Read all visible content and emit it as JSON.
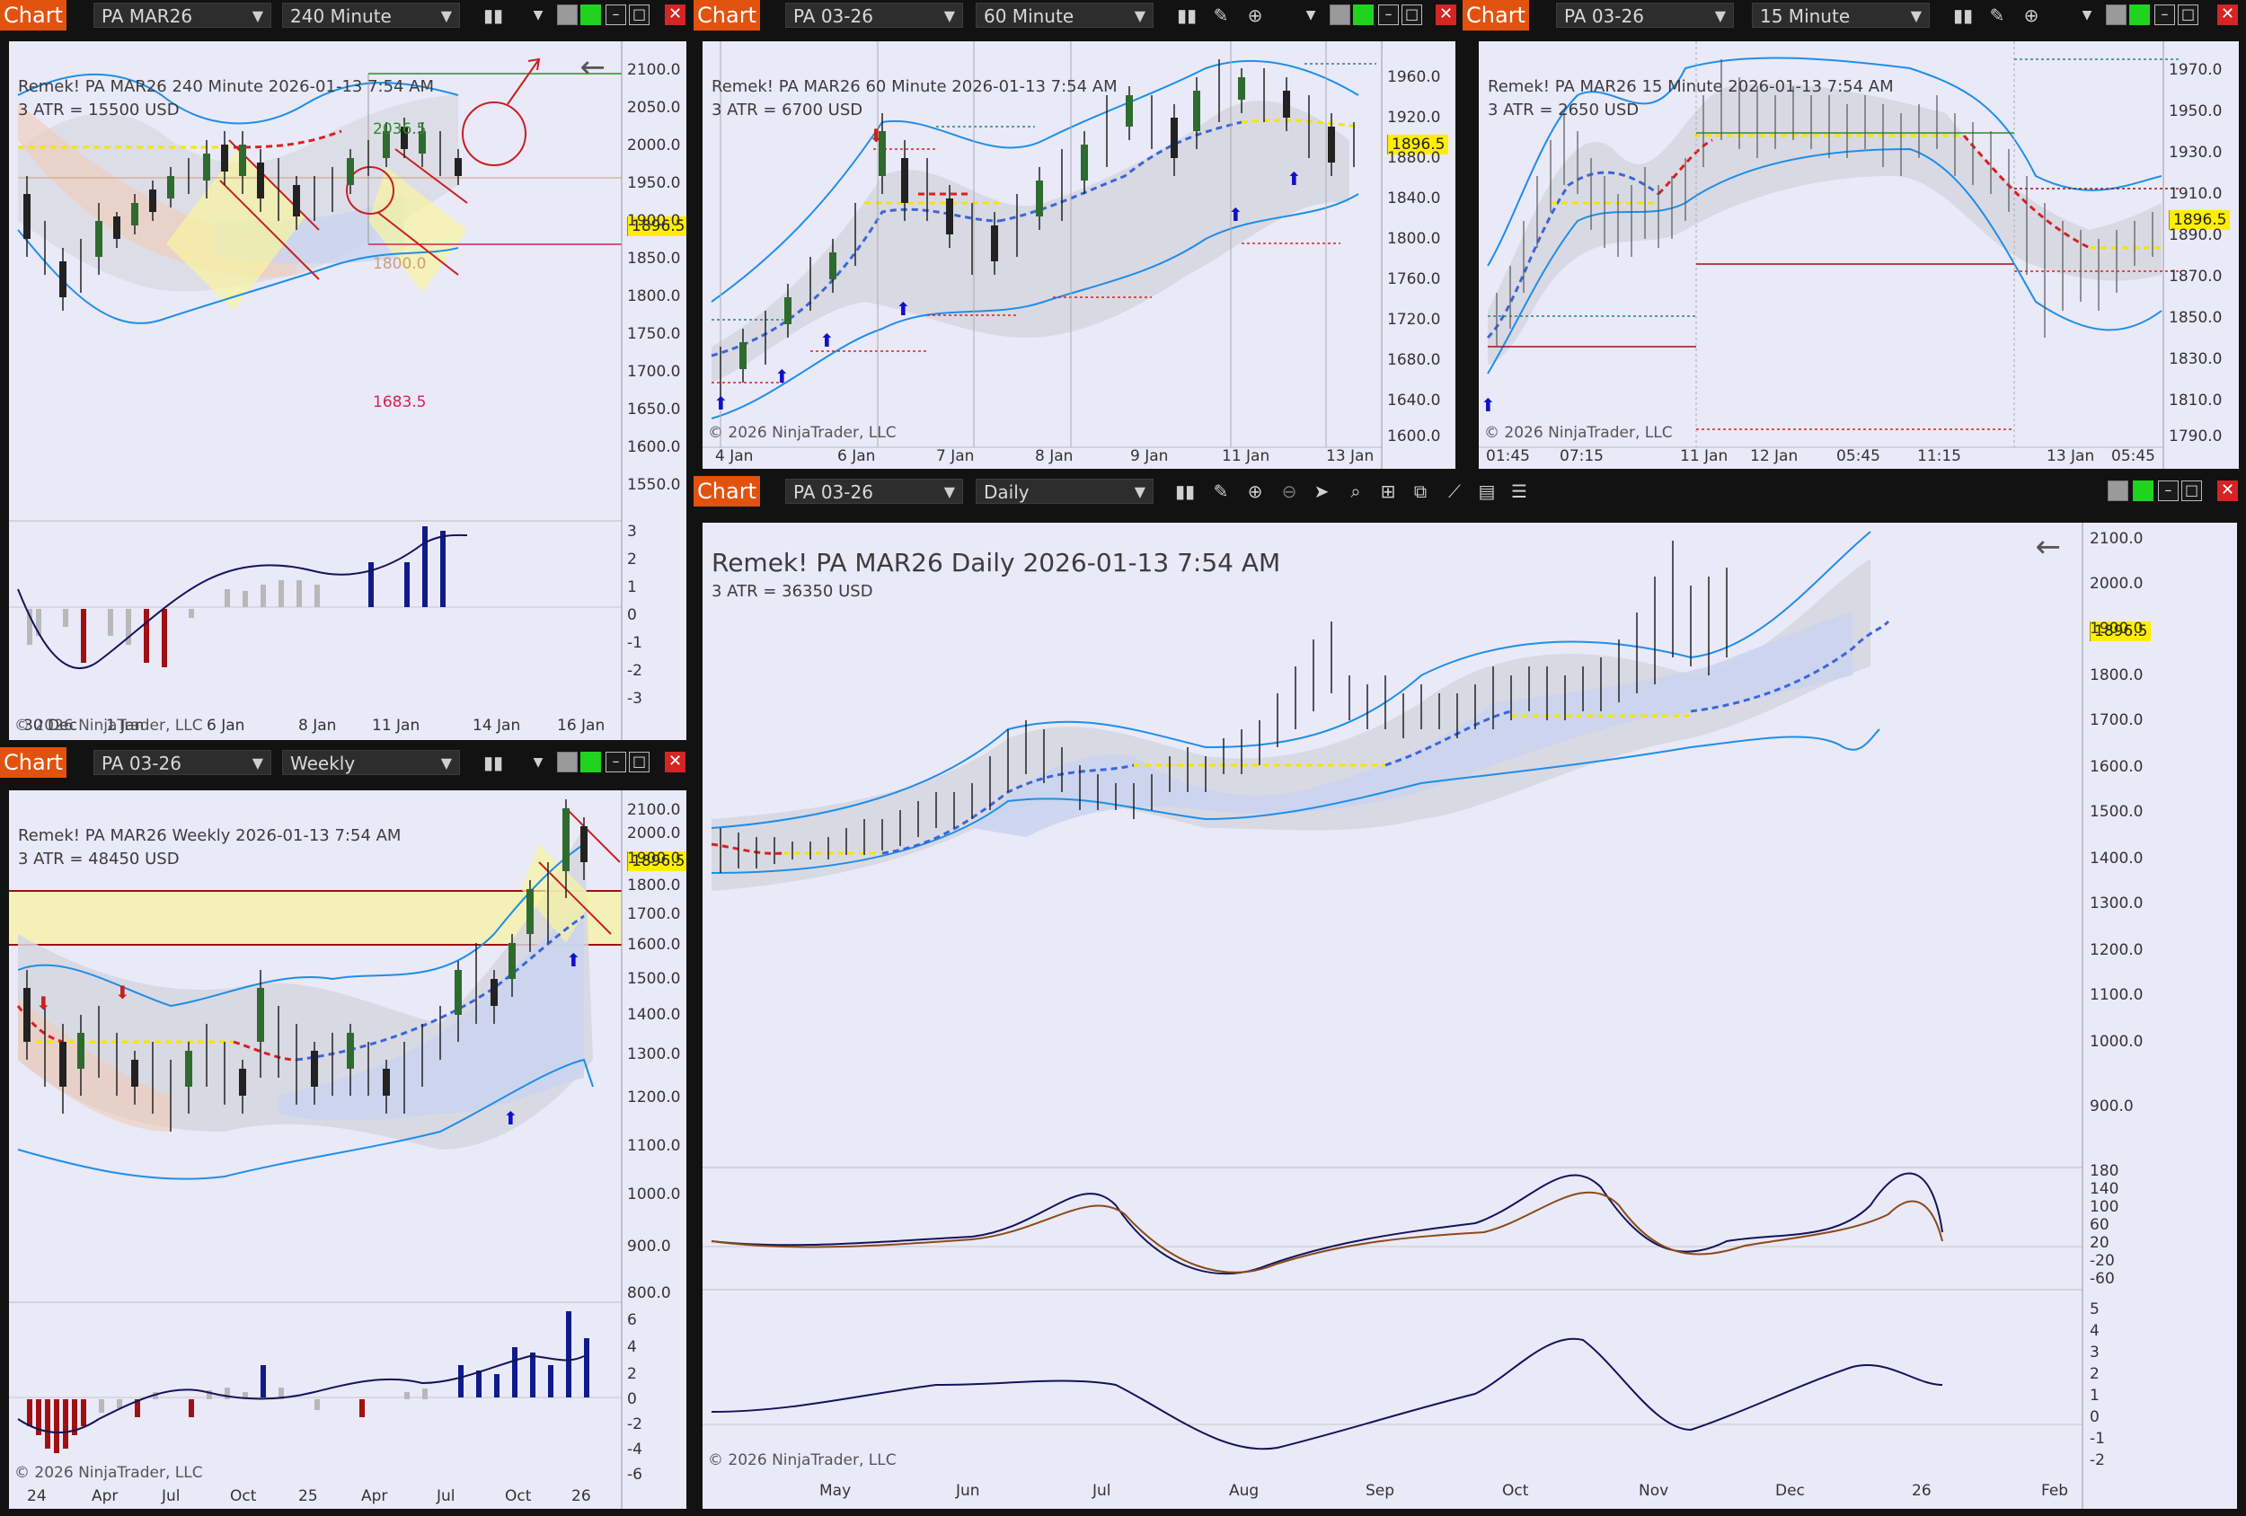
{
  "windows": {
    "w240": {
      "title": "Chart",
      "instrument": "PA MAR26",
      "interval": "240 Minute",
      "info_line": "Remek!  PA MAR26  240 Minute  2026-01-13 7:54 AM",
      "atr_line": "3 ATR = 15500 USD",
      "copyright": "© 2026 NinjaTrader, LLC",
      "last_price": "1896.5",
      "label_high": "2036.5",
      "label_mid": "1800.0",
      "label_low": "1683.5",
      "y_ticks": [
        "2100.0",
        "2050.0",
        "2000.0",
        "1950.0",
        "1900.0",
        "1850.0",
        "1800.0",
        "1750.0",
        "1700.0",
        "1650.0",
        "1600.0",
        "1550.0"
      ],
      "osc_ticks": [
        "3",
        "2",
        "1",
        "0",
        "-1",
        "-2",
        "-3"
      ],
      "x_ticks": [
        "30 Dec",
        "1 Jan",
        "6 Jan",
        "8 Jan",
        "11 Jan",
        "14 Jan",
        "16 Jan"
      ]
    },
    "w60": {
      "title": "Chart",
      "instrument": "PA 03-26",
      "interval": "60 Minute",
      "info_line": "Remek!  PA MAR26  60 Minute  2026-01-13 7:54 AM",
      "atr_line": "3 ATR = 6700 USD",
      "copyright": "© 2026 NinjaTrader, LLC",
      "last_price": "1896.5",
      "y_ticks": [
        "1960.0",
        "1920.0",
        "1880.0",
        "1840.0",
        "1800.0",
        "1760.0",
        "1720.0",
        "1680.0",
        "1640.0",
        "1600.0"
      ],
      "x_ticks": [
        "4 Jan",
        "6 Jan",
        "7 Jan",
        "8 Jan",
        "9 Jan",
        "11 Jan",
        "13 Jan"
      ]
    },
    "w15": {
      "title": "Chart",
      "instrument": "PA 03-26",
      "interval": "15 Minute",
      "info_line": "Remek!  PA MAR26  15 Minute  2026-01-13 7:54 AM",
      "atr_line": "3 ATR = 2650 USD",
      "copyright": "© 2026 NinjaTrader, LLC",
      "last_price": "1896.5",
      "y_ticks": [
        "1970.0",
        "1950.0",
        "1930.0",
        "1910.0",
        "1890.0",
        "1870.0",
        "1850.0",
        "1830.0",
        "1810.0",
        "1790.0"
      ],
      "x_ticks": [
        "01:45",
        "07:15",
        "11 Jan",
        "12 Jan",
        "05:45",
        "11:15",
        "13 Jan",
        "05:45"
      ]
    },
    "wweekly": {
      "title": "Chart",
      "instrument": "PA 03-26",
      "interval": "Weekly",
      "info_line": "Remek!  PA MAR26  Weekly  2026-01-13 7:54 AM",
      "atr_line": "3 ATR = 48450 USD",
      "copyright": "© 2026 NinjaTrader, LLC",
      "last_price": "1896.5",
      "y_ticks": [
        "2100.0",
        "2000.0",
        "1900.0",
        "1800.0",
        "1700.0",
        "1600.0",
        "1500.0",
        "1400.0",
        "1300.0",
        "1200.0",
        "1100.0",
        "1000.0",
        "900.0",
        "800.0"
      ],
      "osc_ticks": [
        "6",
        "4",
        "2",
        "0",
        "-2",
        "-4",
        "-6"
      ],
      "x_ticks": [
        "24",
        "Apr",
        "Jul",
        "Oct",
        "25",
        "Apr",
        "Jul",
        "Oct",
        "26"
      ]
    },
    "wdaily": {
      "title": "Chart",
      "instrument": "PA 03-26",
      "interval": "Daily",
      "info_line": "Remek!  PA MAR26  Daily  2026-01-13 7:54 AM",
      "atr_line": "3 ATR = 36350 USD",
      "copyright": "© 2026 NinjaTrader, LLC",
      "last_price": "1896.5",
      "y_ticks": [
        "2100.0",
        "2000.0",
        "1900.0",
        "1800.0",
        "1700.0",
        "1600.0",
        "1500.0",
        "1400.0",
        "1300.0",
        "1200.0",
        "1100.0",
        "1000.0",
        "900.0"
      ],
      "osc1_ticks": [
        "180",
        "140",
        "100",
        "60",
        "20",
        "-20",
        "-60"
      ],
      "osc2_ticks": [
        "5",
        "4",
        "3",
        "2",
        "1",
        "0",
        "-1",
        "-2"
      ],
      "x_ticks": [
        "May",
        "Jun",
        "Jul",
        "Aug",
        "Sep",
        "Oct",
        "Nov",
        "Dec",
        "26",
        "Feb"
      ]
    }
  },
  "colors": {
    "chart_bg": "#e9e9f8",
    "title_tab": "#e2520f",
    "candle": "#222222",
    "band_blue": "#1e8ee8",
    "trend_blue": "#3a66d8",
    "trend_red": "#d82020",
    "trend_yellow": "#f2e600",
    "hist_blue": "#101a8a",
    "hist_red": "#a01010",
    "hist_gray": "#b8b8b8",
    "osc_line": "#11145a",
    "osc_signal": "#8b4a1a"
  }
}
